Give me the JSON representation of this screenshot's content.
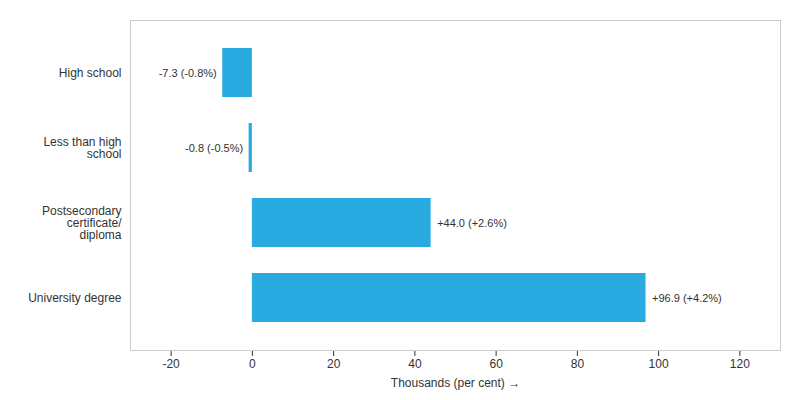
{
  "chart_data": {
    "type": "bar",
    "orientation": "horizontal",
    "categories": [
      "University degree",
      "Postsecondary\ncertificate/\ndiploma",
      "Less than high\nschool",
      "High school"
    ],
    "values": [
      96.9,
      44.0,
      -0.8,
      -7.3
    ],
    "value_labels": [
      "+96.9 (+4.2%)",
      "+44.0 (+2.6%)",
      "-0.8 (-0.5%)",
      "-7.3 (-0.8%)"
    ],
    "data_labels": true,
    "color": "#29ABE2",
    "xlabel": "Thousands (per cent)",
    "xlim": [
      -30,
      130
    ],
    "xticks": [
      -20,
      0,
      20,
      40,
      60,
      80,
      100,
      120
    ],
    "grid": false
  }
}
